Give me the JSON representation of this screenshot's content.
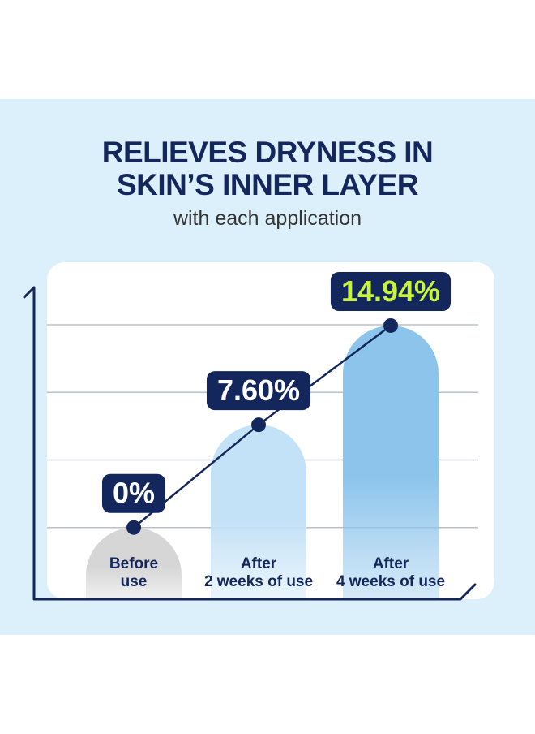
{
  "chart_data": {
    "type": "bar",
    "title": "RELIEVES DRYNESS IN\nSKIN’S INNER LAYER",
    "subtitle": "with each application",
    "categories": [
      "Before\nuse",
      "After\n2 weeks of use",
      "After\n4 weeks of use"
    ],
    "values": [
      0,
      7.6,
      14.94
    ],
    "value_labels": [
      "0%",
      "7.60%",
      "14.94%"
    ],
    "value_label_colors": [
      "#ffffff",
      "#ffffff",
      "#c8f53c"
    ],
    "colors": [
      "#d6d6d6",
      "#c4e2f7",
      "#8cc4ec"
    ],
    "line_color": "#14275c",
    "ylim": [
      -5,
      18
    ],
    "yticks": [
      0,
      5,
      10,
      15
    ],
    "grid": true
  }
}
